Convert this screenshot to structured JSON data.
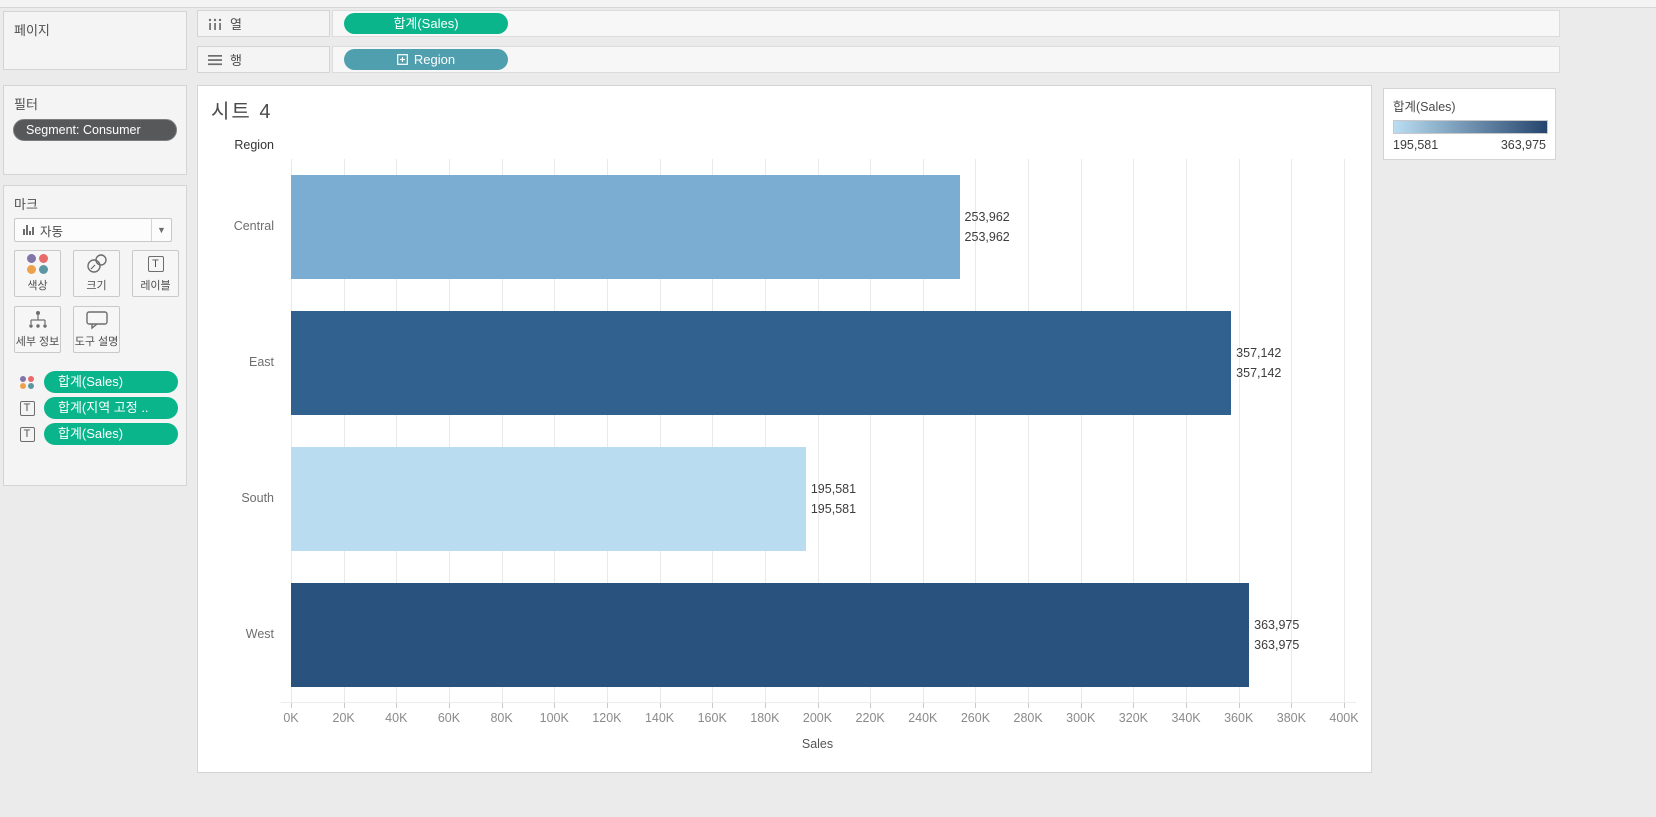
{
  "shelves": {
    "columns": {
      "label": "열",
      "pill": "합계(Sales)"
    },
    "rows": {
      "label": "행",
      "pill": "Region"
    }
  },
  "left_panel": {
    "pages_title": "페이지",
    "filters_title": "필터",
    "filter_pill": "Segment: Consumer",
    "marks": {
      "title": "마크",
      "mark_type": "자동",
      "buttons": [
        {
          "label": "색상"
        },
        {
          "label": "크기"
        },
        {
          "label": "레이블"
        },
        {
          "label": "세부 정보"
        },
        {
          "label": "도구 설명"
        }
      ],
      "pills": [
        {
          "icon": "color-dots-icon",
          "label": "합계(Sales)"
        },
        {
          "icon": "text-icon",
          "label": "합계(지역 고정 .."
        },
        {
          "icon": "text-icon",
          "label": "합계(Sales)"
        }
      ]
    }
  },
  "sheet": {
    "title": "시트 4",
    "row_header": "Region"
  },
  "legend": {
    "title": "합계(Sales)",
    "min": "195,581",
    "max": "363,975",
    "gradient_start": "#b9ddf1",
    "gradient_end": "#26456e"
  },
  "icons": {
    "columns": "columns-bars-icon",
    "rows": "rows-lines-icon",
    "color": "color-dots-icon",
    "size": "size-circles-icon",
    "label": "label-t-icon",
    "detail": "detail-tree-icon",
    "tooltip": "tooltip-bubble-icon",
    "hierarchy": "plus-box-icon",
    "dropdown": "chevron-down-icon"
  },
  "chart_data": {
    "type": "bar",
    "orientation": "horizontal",
    "title": "시트 4",
    "categories": [
      "Central",
      "East",
      "South",
      "West"
    ],
    "values": [
      253962,
      357142,
      195581,
      363975
    ],
    "bar_labels": [
      [
        "253,962",
        "253,962"
      ],
      [
        "357,142",
        "357,142"
      ],
      [
        "195,581",
        "195,581"
      ],
      [
        "363,975",
        "363,975"
      ]
    ],
    "bar_colors": [
      "#7badd2",
      "#31618e",
      "#b9dcf0",
      "#2a527e"
    ],
    "xlabel": "Sales",
    "ylabel": "Region",
    "xlim": [
      0,
      400000
    ],
    "x_ticks": [
      "0K",
      "20K",
      "40K",
      "60K",
      "80K",
      "100K",
      "120K",
      "140K",
      "160K",
      "180K",
      "200K",
      "220K",
      "240K",
      "260K",
      "280K",
      "300K",
      "320K",
      "340K",
      "360K",
      "380K",
      "400K"
    ],
    "grid": true,
    "legend_position": "right",
    "color_encoding": {
      "field": "합계(Sales)",
      "min": 195581,
      "max": 363975
    }
  }
}
